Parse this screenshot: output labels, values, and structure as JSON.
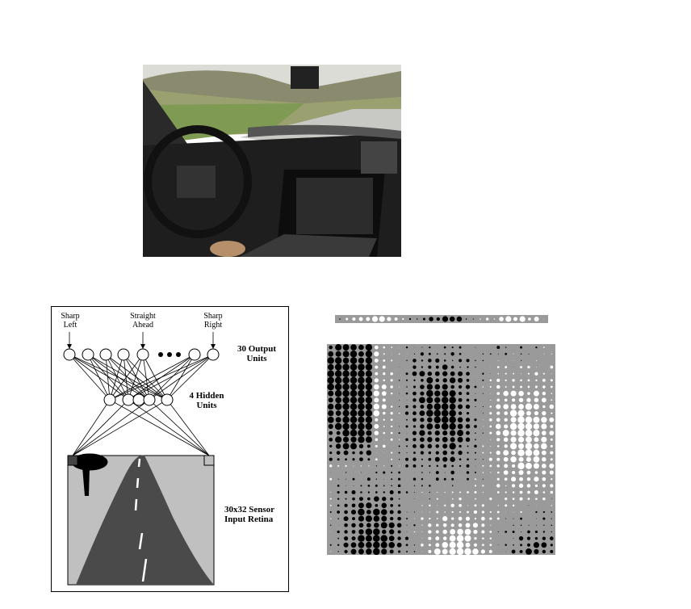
{
  "photo": {
    "description_icon": "car-interior-photo"
  },
  "network": {
    "output_labels": {
      "sharp_left": "Sharp\nLeft",
      "straight_ahead": "Straight\nAhead",
      "sharp_right": "Sharp\nRight"
    },
    "output_units_label": "30 Output\nUnits",
    "hidden_units_label": "4 Hidden\nUnits",
    "sensor_label": "30x32 Sensor\nInput Retina"
  },
  "weights": {
    "output_row_count": 30,
    "grid_cols": 30,
    "grid_rows": 32
  },
  "colors": {
    "road": "#4a4a4a",
    "retina_bg": "#c0c0c0",
    "weight_bg": "#9a9a9a"
  }
}
